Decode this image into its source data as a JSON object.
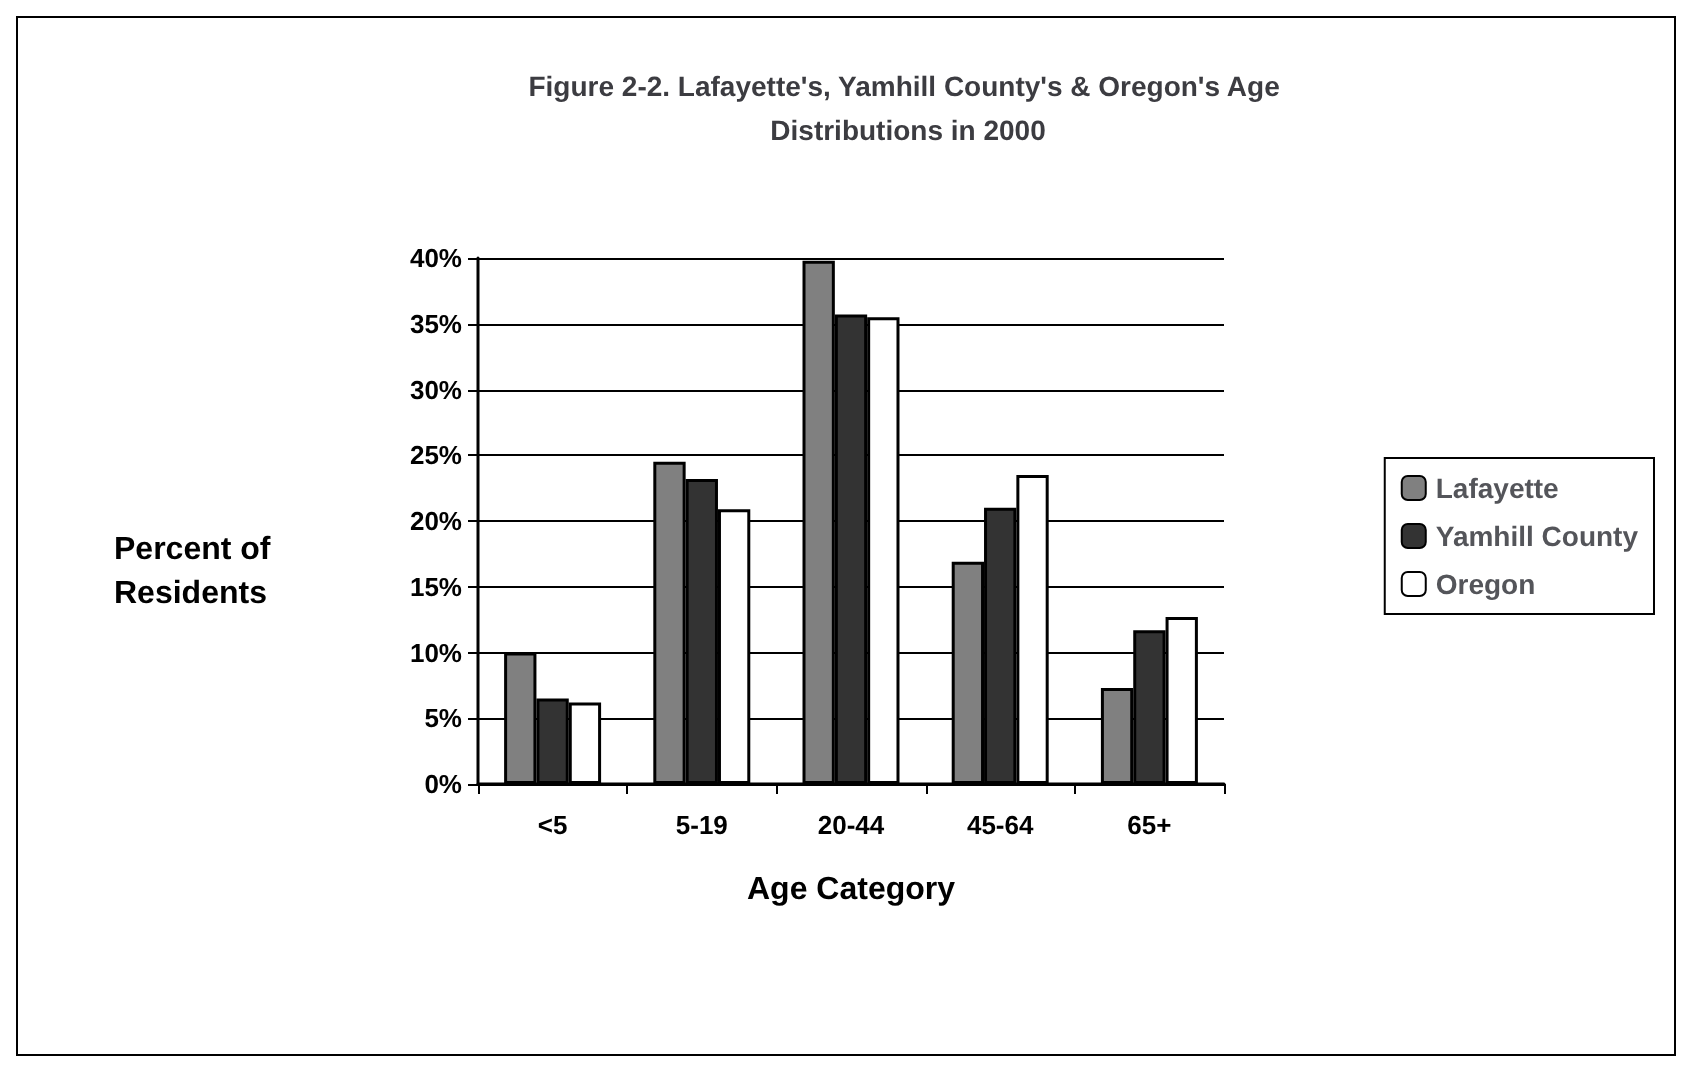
{
  "chart_data": {
    "type": "bar",
    "title": "Figure 2-2. Lafayette's, Yamhill County's & Oregon's Age Distributions in 2000",
    "xlabel": "Age Category",
    "ylabel": "Percent of Residents",
    "categories": [
      "<5",
      "5-19",
      "20-44",
      "45-64",
      "65+"
    ],
    "series": [
      {
        "name": "Lafayette",
        "color": "#808080",
        "values": [
          10,
          24.5,
          39.8,
          16.9,
          7.3
        ]
      },
      {
        "name": "Yamhill County",
        "color": "#333333",
        "values": [
          6.5,
          23.2,
          35.7,
          21,
          11.7
        ]
      },
      {
        "name": "Oregon",
        "color": "#ffffff",
        "values": [
          6.2,
          20.9,
          35.5,
          23.5,
          12.7
        ]
      }
    ],
    "ylim": [
      0,
      40
    ],
    "yticks": [
      {
        "value": 0,
        "label": "0%"
      },
      {
        "value": 5,
        "label": "5%"
      },
      {
        "value": 10,
        "label": "10%"
      },
      {
        "value": 15,
        "label": "15%"
      },
      {
        "value": 20,
        "label": "20%"
      },
      {
        "value": 25,
        "label": "25%"
      },
      {
        "value": 30,
        "label": "30%"
      },
      {
        "value": 35,
        "label": "35%"
      },
      {
        "value": 40,
        "label": "40%"
      }
    ],
    "grid": "y",
    "legend": "right"
  }
}
